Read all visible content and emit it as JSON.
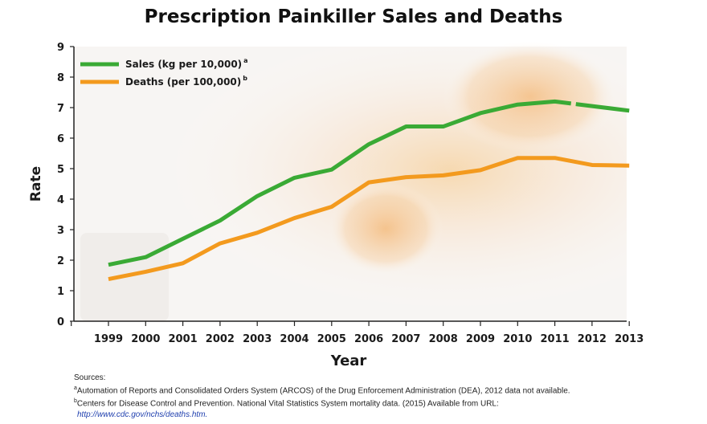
{
  "chart_data": {
    "type": "line",
    "title": "Prescription Painkiller Sales and Deaths",
    "xlabel": "Year",
    "ylabel": "Rate",
    "ylim": [
      0,
      9
    ],
    "yticks": [
      "0",
      "1",
      "2",
      "3",
      "4",
      "5",
      "6",
      "7",
      "8",
      "9"
    ],
    "categories": [
      "1999",
      "2000",
      "2001",
      "2002",
      "2003",
      "2004",
      "2005",
      "2006",
      "2007",
      "2008",
      "2009",
      "2010",
      "2011",
      "2012",
      "2013"
    ],
    "grid": false,
    "legend": "top-left",
    "series": [
      {
        "name": "Sales (kg per 10,000)",
        "superscript": "a",
        "color": "#3aaa35",
        "values": [
          1.85,
          2.1,
          2.7,
          3.3,
          4.1,
          4.7,
          4.97,
          5.8,
          6.38,
          6.38,
          6.82,
          7.1,
          7.2,
          7.05,
          6.9
        ],
        "dashed_gap": [
          "2011",
          "2012"
        ]
      },
      {
        "name": "Deaths (per 100,000)",
        "superscript": "b",
        "color": "#f39a1e",
        "values": [
          1.38,
          1.62,
          1.9,
          2.55,
          2.9,
          3.38,
          3.75,
          4.55,
          4.72,
          4.78,
          4.95,
          5.35,
          5.35,
          5.12,
          5.1
        ]
      }
    ]
  },
  "sources": {
    "title": "Sources:",
    "a_marker": "a",
    "a_text": "Automation of Reports and Consolidated Orders System (ARCOS) of the Drug Enforcement Administration (DEA), 2012 data not available.",
    "b_marker": "b",
    "b_text": "Centers for Disease Control and Prevention. National Vital Statistics System mortality data. (2015) Available from URL:",
    "url": "http://www.cdc.gov/nchs/deaths.htm."
  }
}
